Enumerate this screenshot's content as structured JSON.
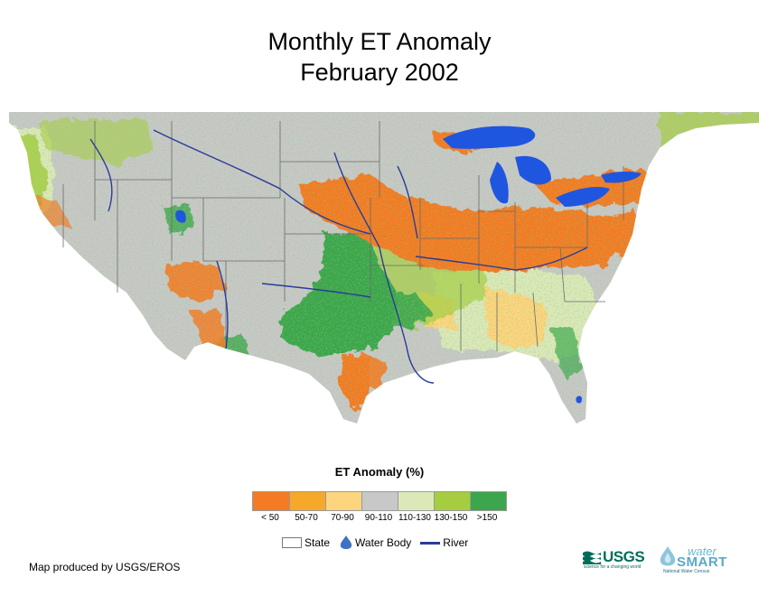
{
  "title": {
    "line1": "Monthly ET Anomaly",
    "line2": "February 2002"
  },
  "legend": {
    "title": "ET Anomaly (%)",
    "classes": [
      {
        "label": "< 50",
        "color": "#f47a23"
      },
      {
        "label": "50-70",
        "color": "#f6a82a"
      },
      {
        "label": "70-90",
        "color": "#fdd57e"
      },
      {
        "label": "90-110",
        "color": "#c8c8c8"
      },
      {
        "label": "110-130",
        "color": "#dbe9b9"
      },
      {
        "label": "130-150",
        "color": "#a5cd3f"
      },
      {
        "label": ">150",
        "color": "#3ba64b"
      }
    ]
  },
  "key": {
    "state_label": "State",
    "water_label": "Water Body",
    "river_label": "River"
  },
  "colors": {
    "water": "#1f56e0",
    "river": "#2a3c9a",
    "state_boundary": "#6b6b6b",
    "nodata": "#ffffff"
  },
  "credit": "Map produced by USGS/EROS",
  "logos": {
    "usgs": "USGS",
    "usgs_tagline": "science for a changing world",
    "ws_water": "water",
    "ws_smart": "SMART",
    "ws_census": "National Water Census"
  }
}
